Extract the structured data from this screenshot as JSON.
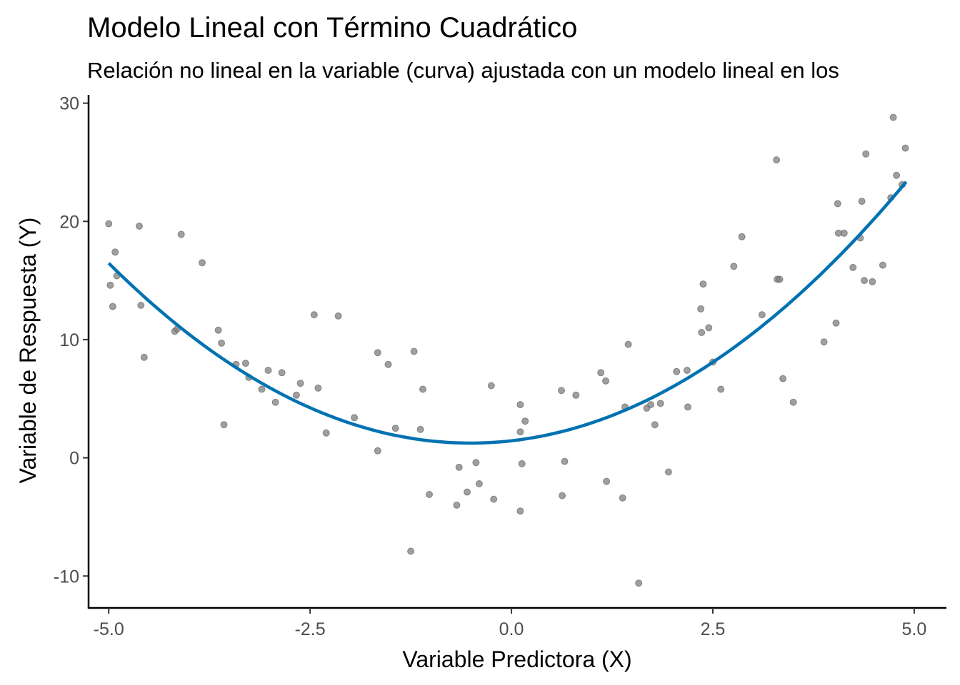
{
  "chart_data": {
    "type": "scatter",
    "title": "Modelo Lineal con Término Cuadrático",
    "subtitle": "Relación no lineal en la variable (curva) ajustada con un modelo lineal en los",
    "xlabel": "Variable Predictora (X)",
    "ylabel": "Variable de Respuesta (Y)",
    "xlim": [
      -5.25,
      5.4
    ],
    "ylim": [
      -12.7,
      30.7
    ],
    "x_ticks": [
      -5.0,
      -2.5,
      0.0,
      2.5,
      5.0
    ],
    "x_tick_labels": [
      "-5.0",
      "-2.5",
      "0.0",
      "2.5",
      "5.0"
    ],
    "y_ticks": [
      -10,
      0,
      10,
      20,
      30
    ],
    "y_tick_labels": [
      "-10",
      "0",
      "10",
      "20",
      "30"
    ],
    "grid": false,
    "point_color": "#7f7f7f",
    "line_color": "#0072b2",
    "points": [
      {
        "x": -5.0,
        "y": 19.8
      },
      {
        "x": -4.98,
        "y": 14.6
      },
      {
        "x": -4.95,
        "y": 12.8
      },
      {
        "x": -4.92,
        "y": 17.4
      },
      {
        "x": -4.9,
        "y": 15.4
      },
      {
        "x": -4.62,
        "y": 19.6
      },
      {
        "x": -4.6,
        "y": 12.9
      },
      {
        "x": -4.56,
        "y": 8.5
      },
      {
        "x": -4.18,
        "y": 10.7
      },
      {
        "x": -4.15,
        "y": 10.9
      },
      {
        "x": -4.1,
        "y": 18.9
      },
      {
        "x": -3.84,
        "y": 16.5
      },
      {
        "x": -3.64,
        "y": 10.8
      },
      {
        "x": -3.6,
        "y": 9.7
      },
      {
        "x": -3.57,
        "y": 2.8
      },
      {
        "x": -3.42,
        "y": 7.9
      },
      {
        "x": -3.3,
        "y": 8.0
      },
      {
        "x": -3.26,
        "y": 6.8
      },
      {
        "x": -3.1,
        "y": 5.8
      },
      {
        "x": -3.02,
        "y": 7.4
      },
      {
        "x": -2.93,
        "y": 4.7
      },
      {
        "x": -2.85,
        "y": 7.2
      },
      {
        "x": -2.67,
        "y": 5.3
      },
      {
        "x": -2.62,
        "y": 6.3
      },
      {
        "x": -2.45,
        "y": 12.1
      },
      {
        "x": -2.4,
        "y": 5.9
      },
      {
        "x": -2.3,
        "y": 2.1
      },
      {
        "x": -2.15,
        "y": 12.0
      },
      {
        "x": -1.95,
        "y": 3.4
      },
      {
        "x": -1.66,
        "y": 8.9
      },
      {
        "x": -1.66,
        "y": 0.6
      },
      {
        "x": -1.53,
        "y": 7.9
      },
      {
        "x": -1.44,
        "y": 2.5
      },
      {
        "x": -1.25,
        "y": -7.9
      },
      {
        "x": -1.21,
        "y": 9.0
      },
      {
        "x": -1.13,
        "y": 2.4
      },
      {
        "x": -1.1,
        "y": 5.8
      },
      {
        "x": -1.02,
        "y": -3.1
      },
      {
        "x": -0.68,
        "y": -4.0
      },
      {
        "x": -0.65,
        "y": -0.8
      },
      {
        "x": -0.55,
        "y": -2.9
      },
      {
        "x": -0.44,
        "y": -0.4
      },
      {
        "x": -0.4,
        "y": -2.2
      },
      {
        "x": -0.25,
        "y": 6.1
      },
      {
        "x": -0.22,
        "y": -3.5
      },
      {
        "x": 0.11,
        "y": 4.5
      },
      {
        "x": 0.11,
        "y": -4.5
      },
      {
        "x": 0.11,
        "y": 2.2
      },
      {
        "x": 0.13,
        "y": -0.5
      },
      {
        "x": 0.17,
        "y": 3.1
      },
      {
        "x": 0.62,
        "y": 5.7
      },
      {
        "x": 0.63,
        "y": -3.2
      },
      {
        "x": 0.66,
        "y": -0.3
      },
      {
        "x": 0.8,
        "y": 5.3
      },
      {
        "x": 1.11,
        "y": 7.2
      },
      {
        "x": 1.17,
        "y": 6.5
      },
      {
        "x": 1.18,
        "y": -2.0
      },
      {
        "x": 1.38,
        "y": -3.4
      },
      {
        "x": 1.41,
        "y": 4.3
      },
      {
        "x": 1.45,
        "y": 9.6
      },
      {
        "x": 1.58,
        "y": -10.6
      },
      {
        "x": 1.68,
        "y": 4.2
      },
      {
        "x": 1.73,
        "y": 4.5
      },
      {
        "x": 1.78,
        "y": 2.8
      },
      {
        "x": 1.85,
        "y": 4.6
      },
      {
        "x": 1.95,
        "y": -1.2
      },
      {
        "x": 2.05,
        "y": 7.3
      },
      {
        "x": 2.18,
        "y": 7.4
      },
      {
        "x": 2.19,
        "y": 4.3
      },
      {
        "x": 2.35,
        "y": 12.6
      },
      {
        "x": 2.36,
        "y": 10.6
      },
      {
        "x": 2.38,
        "y": 14.7
      },
      {
        "x": 2.45,
        "y": 11.0
      },
      {
        "x": 2.5,
        "y": 8.1
      },
      {
        "x": 2.6,
        "y": 5.8
      },
      {
        "x": 2.76,
        "y": 16.2
      },
      {
        "x": 2.86,
        "y": 18.7
      },
      {
        "x": 3.11,
        "y": 12.1
      },
      {
        "x": 3.29,
        "y": 25.2
      },
      {
        "x": 3.3,
        "y": 15.1
      },
      {
        "x": 3.33,
        "y": 15.1
      },
      {
        "x": 3.37,
        "y": 6.7
      },
      {
        "x": 3.5,
        "y": 4.7
      },
      {
        "x": 3.88,
        "y": 9.8
      },
      {
        "x": 4.03,
        "y": 11.4
      },
      {
        "x": 4.05,
        "y": 21.5
      },
      {
        "x": 4.06,
        "y": 19.0
      },
      {
        "x": 4.13,
        "y": 19.0
      },
      {
        "x": 4.24,
        "y": 16.1
      },
      {
        "x": 4.33,
        "y": 18.6
      },
      {
        "x": 4.35,
        "y": 21.7
      },
      {
        "x": 4.38,
        "y": 15.0
      },
      {
        "x": 4.4,
        "y": 25.7
      },
      {
        "x": 4.48,
        "y": 14.9
      },
      {
        "x": 4.61,
        "y": 16.3
      },
      {
        "x": 4.71,
        "y": 22.0
      },
      {
        "x": 4.74,
        "y": 28.8
      },
      {
        "x": 4.78,
        "y": 23.9
      },
      {
        "x": 4.85,
        "y": 23.1
      },
      {
        "x": 4.89,
        "y": 26.2
      }
    ],
    "fit_curve": {
      "x_min": -5.0,
      "x_max": 4.9,
      "a": 0.755,
      "b": 0.77,
      "c": 1.44
    }
  }
}
